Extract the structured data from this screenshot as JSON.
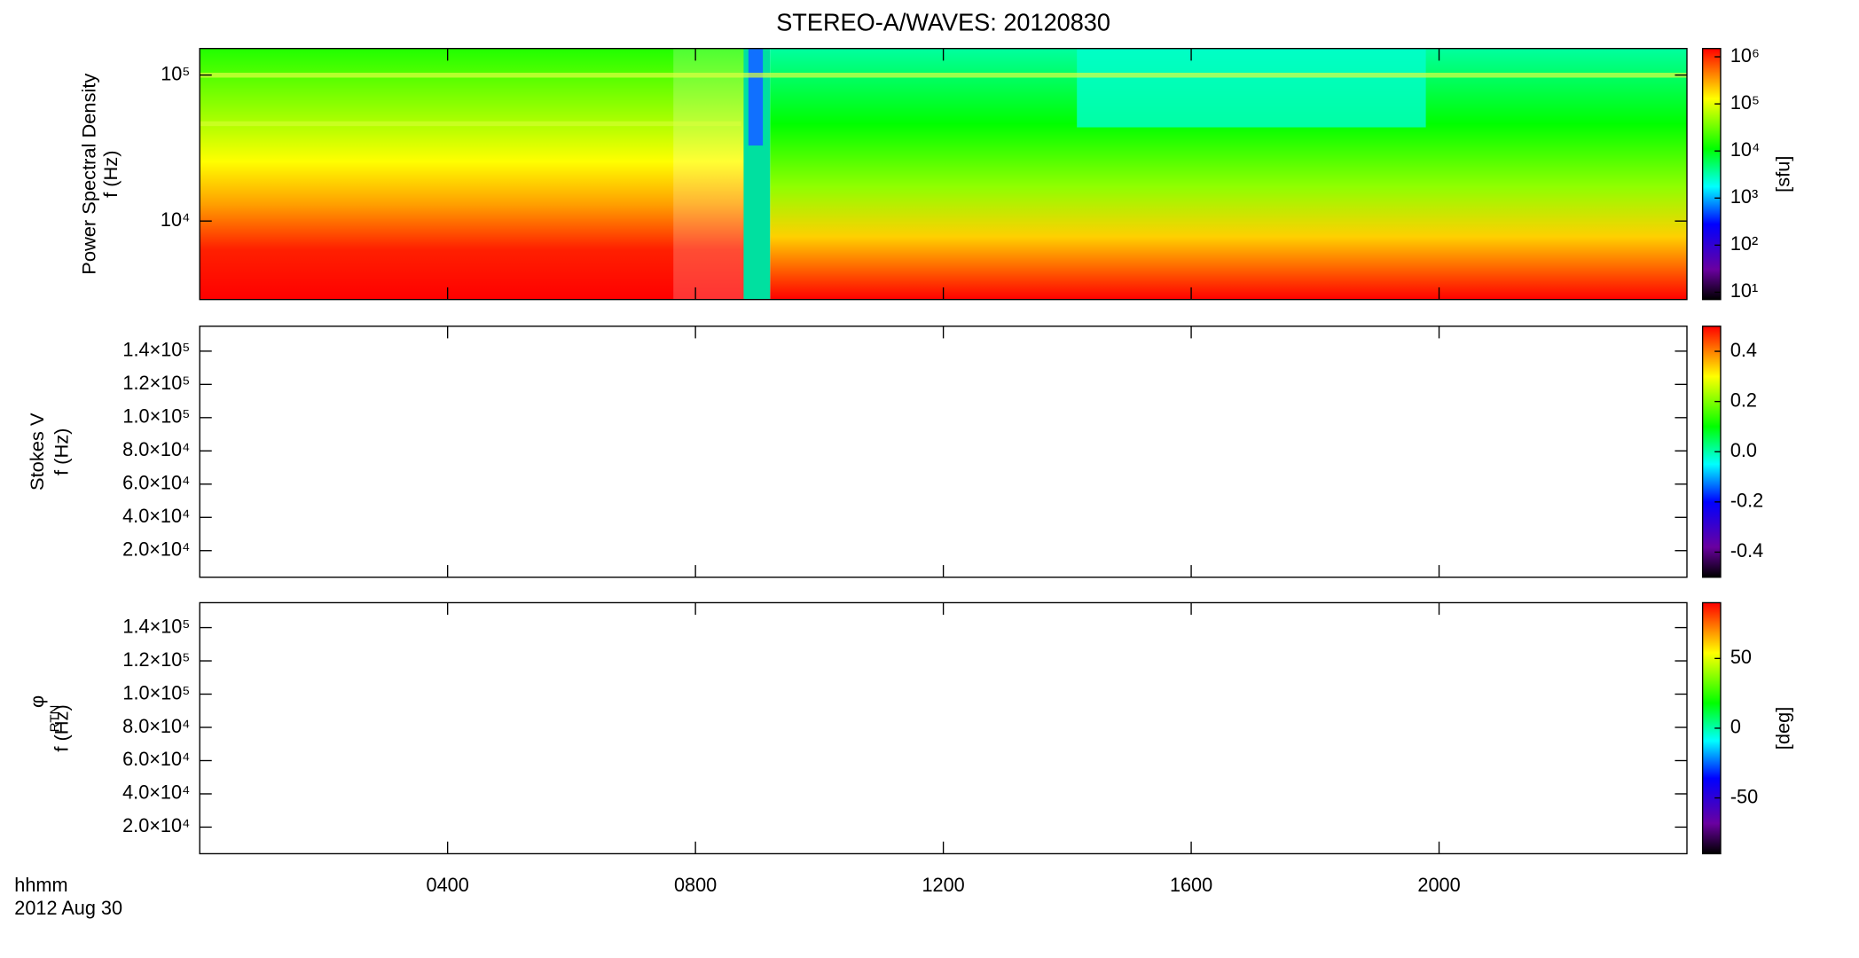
{
  "chart_data": [
    {
      "type": "heatmap",
      "title": "STEREO-A/WAVES: 20120830",
      "ylabel": [
        "Power Spectral Density",
        "f (Hz)"
      ],
      "log_y": true,
      "ylim": [
        2900,
        152000
      ],
      "yticks": [
        {
          "value": 10000,
          "label": "10⁴"
        },
        {
          "value": 100000,
          "label": "10⁵"
        }
      ],
      "colorbar_log": true,
      "clim": [
        7,
        1500000
      ],
      "cticks": [
        {
          "value": 10,
          "label": "10¹"
        },
        {
          "value": 100,
          "label": "10²"
        },
        {
          "value": 1000,
          "label": "10³"
        },
        {
          "value": 10000,
          "label": "10⁴"
        },
        {
          "value": 100000,
          "label": "10⁵"
        },
        {
          "value": 1000000,
          "label": "10⁶"
        }
      ],
      "colorbar_label": "[sfu]"
    },
    {
      "type": "heatmap",
      "ylabel": [
        "Stokes V",
        "f (Hz)"
      ],
      "ylim": [
        4000,
        155000
      ],
      "yticks": [
        {
          "value": 20000,
          "label": "2.0×10⁴"
        },
        {
          "value": 40000,
          "label": "4.0×10⁴"
        },
        {
          "value": 60000,
          "label": "6.0×10⁴"
        },
        {
          "value": 80000,
          "label": "8.0×10⁴"
        },
        {
          "value": 100000,
          "label": "1.0×10⁵"
        },
        {
          "value": 120000,
          "label": "1.2×10⁵"
        },
        {
          "value": 140000,
          "label": "1.4×10⁵"
        }
      ],
      "clim": [
        -0.5,
        0.5
      ],
      "cticks": [
        -0.4,
        -0.2,
        {
          "value": 0,
          "label": "0.0"
        },
        0.2,
        0.4
      ]
    },
    {
      "type": "heatmap",
      "ylabel": [
        "φ",
        "RTN",
        "f (Hz)"
      ],
      "ylim": [
        4000,
        155000
      ],
      "yticks": [
        {
          "value": 20000,
          "label": "2.0×10⁴"
        },
        {
          "value": 40000,
          "label": "4.0×10⁴"
        },
        {
          "value": 60000,
          "label": "6.0×10⁴"
        },
        {
          "value": 80000,
          "label": "8.0×10⁴"
        },
        {
          "value": 100000,
          "label": "1.0×10⁵"
        },
        {
          "value": 120000,
          "label": "1.2×10⁵"
        },
        {
          "value": 140000,
          "label": "1.4×10⁵"
        }
      ],
      "clim": [
        -90,
        90
      ],
      "cticks": [
        -50,
        0,
        50
      ],
      "colorbar_label": "[deg]",
      "xlim": [
        0,
        24
      ],
      "xticks": [
        {
          "value": 4,
          "label": "0400"
        },
        {
          "value": 8,
          "label": "0800"
        },
        {
          "value": 12,
          "label": "1200"
        },
        {
          "value": 16,
          "label": "1600"
        },
        {
          "value": 20,
          "label": "2000"
        }
      ],
      "xlabel": [
        "hhmm",
        "2012 Aug 30"
      ]
    }
  ]
}
